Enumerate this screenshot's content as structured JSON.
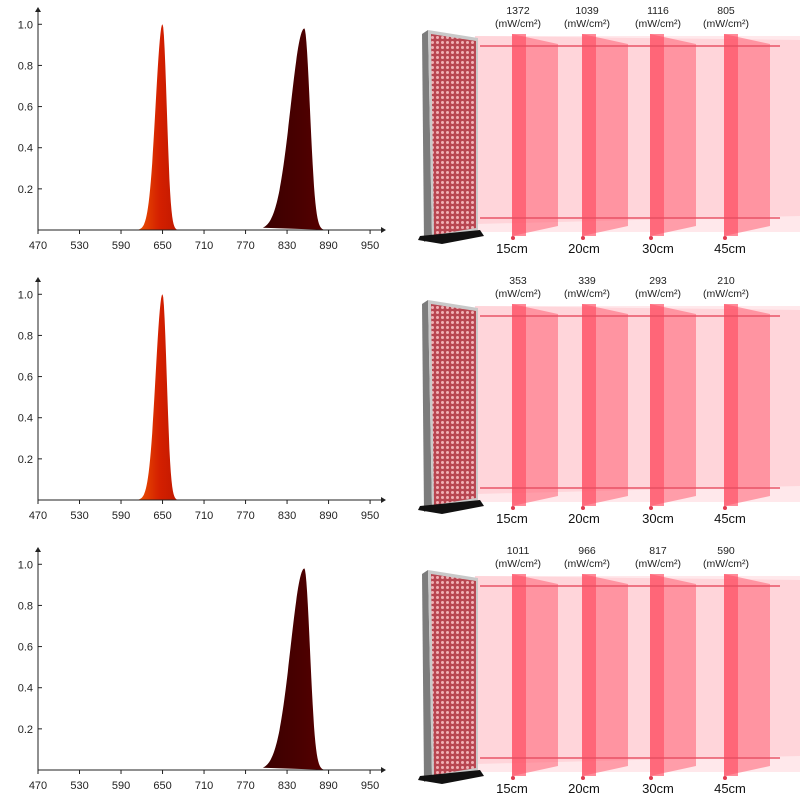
{
  "chart_data": [
    {
      "type": "area",
      "x_ticks": [
        470,
        530,
        590,
        650,
        710,
        770,
        830,
        890,
        950
      ],
      "y_ticks": [
        0.2,
        0.4,
        0.6,
        0.8,
        1.0
      ],
      "y_tick_labels": [
        "0.2",
        "0.4",
        "0.6",
        "0.8",
        "1.0"
      ],
      "xlim": [
        470,
        960
      ],
      "ylim": [
        0,
        1.05
      ],
      "series": [
        {
          "peak": 650,
          "height": 1.0,
          "colors": [
            "#ff7a00",
            "#d42000",
            "#b51400"
          ]
        },
        {
          "peak": 855,
          "height": 0.98,
          "colors": [
            "#3a0000",
            "#4a0000",
            "#5a0000"
          ]
        }
      ]
    },
    {
      "type": "area",
      "x_ticks": [
        470,
        530,
        590,
        650,
        710,
        770,
        830,
        890,
        950
      ],
      "y_ticks": [
        0.2,
        0.4,
        0.6,
        0.8,
        1.0
      ],
      "y_tick_labels": [
        "0.2",
        "0.4",
        "0.6",
        "0.8",
        "1.0"
      ],
      "xlim": [
        470,
        960
      ],
      "ylim": [
        0,
        1.05
      ],
      "series": [
        {
          "peak": 650,
          "height": 1.0,
          "colors": [
            "#ff7a00",
            "#d42000",
            "#b51400"
          ]
        }
      ]
    },
    {
      "type": "area",
      "x_ticks": [
        470,
        530,
        590,
        650,
        710,
        770,
        830,
        890,
        950
      ],
      "y_ticks": [
        0.2,
        0.4,
        0.6,
        0.8,
        1.0
      ],
      "y_tick_labels": [
        "0.2",
        "0.4",
        "0.6",
        "0.8",
        "1.0"
      ],
      "xlim": [
        470,
        960
      ],
      "ylim": [
        0,
        1.05
      ],
      "series": [
        {
          "peak": 855,
          "height": 0.98,
          "colors": [
            "#3a0000",
            "#4a0000",
            "#5a0000"
          ]
        }
      ]
    }
  ],
  "irradiance": [
    {
      "values": [
        "1372",
        "1039",
        "1116",
        "805"
      ],
      "unit": "(mW/cm²)",
      "distances": [
        "15cm",
        "20cm",
        "30cm",
        "45cm"
      ]
    },
    {
      "values": [
        "353",
        "339",
        "293",
        "210"
      ],
      "unit": "(mW/cm²)",
      "distances": [
        "15cm",
        "20cm",
        "30cm",
        "45cm"
      ]
    },
    {
      "values": [
        "1011",
        "966",
        "817",
        "590"
      ],
      "unit": "(mW/cm²)",
      "distances": [
        "15cm",
        "20cm",
        "30cm",
        "45cm"
      ]
    }
  ]
}
